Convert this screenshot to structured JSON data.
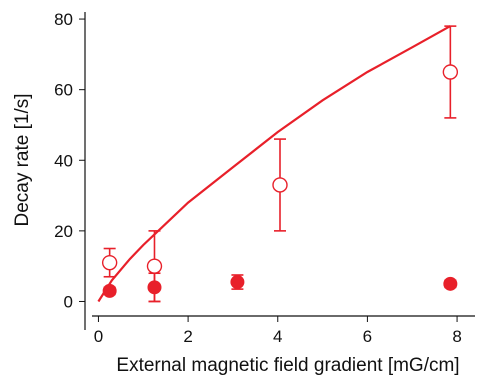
{
  "chart_data": {
    "type": "scatter",
    "xlabel": "External magnetic field gradient [mG/cm]",
    "ylabel": "Decay rate [1/s]",
    "xlim": [
      -0.3,
      8.4
    ],
    "ylim": [
      -1,
      82
    ],
    "x_ticks": [
      "0",
      "2",
      "4",
      "6",
      "8"
    ],
    "y_ticks": [
      "0",
      "20",
      "40",
      "60",
      "80"
    ],
    "grid": false,
    "colors": {
      "series": "#e8202a",
      "axis": "#111111"
    },
    "series": [
      {
        "marker": "open-circle",
        "points": [
          {
            "x": 0.25,
            "y": 11,
            "err": 4
          },
          {
            "x": 1.25,
            "y": 10,
            "err": 10
          },
          {
            "x": 4.05,
            "y": 33,
            "err": 13
          },
          {
            "x": 7.85,
            "y": 65,
            "err": 13
          }
        ]
      },
      {
        "marker": "filled-circle",
        "points": [
          {
            "x": 0.25,
            "y": 3,
            "err": 1
          },
          {
            "x": 1.25,
            "y": 4,
            "err": 4
          },
          {
            "x": 3.1,
            "y": 5.5,
            "err": 2
          },
          {
            "x": 7.85,
            "y": 5,
            "err": 1
          }
        ]
      },
      {
        "marker": "curve",
        "points": [
          {
            "x": 0.0,
            "y": 0
          },
          {
            "x": 0.3,
            "y": 6
          },
          {
            "x": 0.7,
            "y": 12
          },
          {
            "x": 1.0,
            "y": 16
          },
          {
            "x": 1.5,
            "y": 22
          },
          {
            "x": 2.0,
            "y": 28
          },
          {
            "x": 3.0,
            "y": 38
          },
          {
            "x": 4.0,
            "y": 48
          },
          {
            "x": 5.0,
            "y": 57
          },
          {
            "x": 6.0,
            "y": 65
          },
          {
            "x": 7.0,
            "y": 72
          },
          {
            "x": 7.85,
            "y": 78
          }
        ]
      }
    ]
  }
}
